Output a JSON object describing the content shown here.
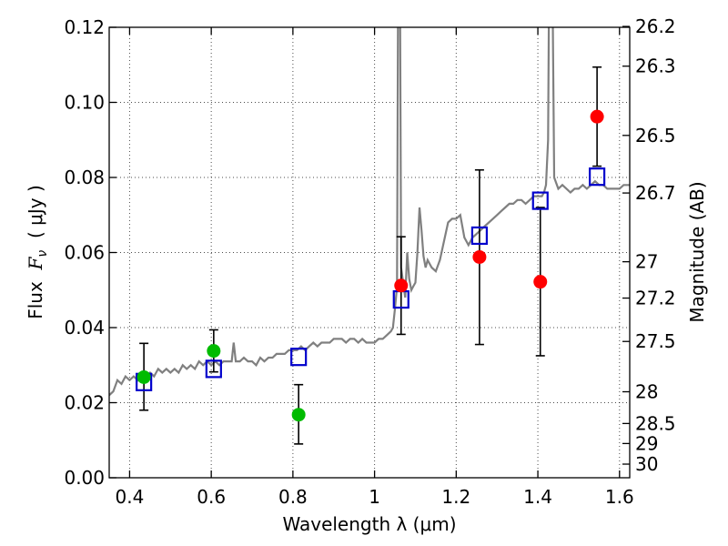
{
  "chart_data": {
    "type": "scatter",
    "xlabel": "Wavelength  λ (μm)",
    "ylabel_left_text": "Flux  ",
    "ylabel_left_symbol": "F",
    "ylabel_left_sub": "ν",
    "ylabel_left_unit": "  ( μJy )",
    "ylabel_right": "Magnitude (AB)",
    "xlim": [
      0.35,
      1.625
    ],
    "ylim": [
      0.0,
      0.12
    ],
    "grid": true,
    "x_ticks": [
      {
        "v": 0.4,
        "label": "0.4"
      },
      {
        "v": 0.6,
        "label": "0.6"
      },
      {
        "v": 0.8,
        "label": "0.8"
      },
      {
        "v": 1.0,
        "label": "1"
      },
      {
        "v": 1.2,
        "label": "1.2"
      },
      {
        "v": 1.4,
        "label": "1.4"
      },
      {
        "v": 1.6,
        "label": "1.6"
      }
    ],
    "y_ticks": [
      {
        "v": 0.0,
        "label": "0.00"
      },
      {
        "v": 0.02,
        "label": "0.02"
      },
      {
        "v": 0.04,
        "label": "0.04"
      },
      {
        "v": 0.06,
        "label": "0.06"
      },
      {
        "v": 0.08,
        "label": "0.08"
      },
      {
        "v": 0.1,
        "label": "0.10"
      },
      {
        "v": 0.12,
        "label": "0.12"
      }
    ],
    "mag_ticks": [
      {
        "mag": 26.2,
        "label": "26.2"
      },
      {
        "mag": 26.3,
        "label": "26.3"
      },
      {
        "mag": 26.5,
        "label": "26.5"
      },
      {
        "mag": 26.7,
        "label": "26.7"
      },
      {
        "mag": 27.0,
        "label": "27"
      },
      {
        "mag": 27.2,
        "label": "27.2"
      },
      {
        "mag": 27.5,
        "label": "27.5"
      },
      {
        "mag": 28.0,
        "label": "28"
      },
      {
        "mag": 28.5,
        "label": "28.5"
      },
      {
        "mag": 29.0,
        "label": "29"
      },
      {
        "mag": 30.0,
        "label": "30"
      }
    ],
    "spectrum": {
      "color": "#808080",
      "points": [
        [
          0.35,
          0.022
        ],
        [
          0.36,
          0.023
        ],
        [
          0.37,
          0.026
        ],
        [
          0.38,
          0.025
        ],
        [
          0.39,
          0.027
        ],
        [
          0.4,
          0.026
        ],
        [
          0.41,
          0.027
        ],
        [
          0.42,
          0.026
        ],
        [
          0.43,
          0.028
        ],
        [
          0.44,
          0.027
        ],
        [
          0.45,
          0.028
        ],
        [
          0.46,
          0.027
        ],
        [
          0.47,
          0.029
        ],
        [
          0.48,
          0.028
        ],
        [
          0.49,
          0.029
        ],
        [
          0.5,
          0.028
        ],
        [
          0.51,
          0.029
        ],
        [
          0.52,
          0.028
        ],
        [
          0.53,
          0.03
        ],
        [
          0.54,
          0.029
        ],
        [
          0.55,
          0.03
        ],
        [
          0.56,
          0.029
        ],
        [
          0.57,
          0.031
        ],
        [
          0.58,
          0.03
        ],
        [
          0.59,
          0.031
        ],
        [
          0.6,
          0.03
        ],
        [
          0.61,
          0.031
        ],
        [
          0.62,
          0.03
        ],
        [
          0.63,
          0.031
        ],
        [
          0.64,
          0.031
        ],
        [
          0.65,
          0.031
        ],
        [
          0.655,
          0.036
        ],
        [
          0.66,
          0.031
        ],
        [
          0.67,
          0.031
        ],
        [
          0.68,
          0.032
        ],
        [
          0.69,
          0.031
        ],
        [
          0.7,
          0.031
        ],
        [
          0.71,
          0.03
        ],
        [
          0.72,
          0.032
        ],
        [
          0.73,
          0.031
        ],
        [
          0.74,
          0.032
        ],
        [
          0.75,
          0.032
        ],
        [
          0.76,
          0.033
        ],
        [
          0.77,
          0.033
        ],
        [
          0.78,
          0.033
        ],
        [
          0.79,
          0.034
        ],
        [
          0.8,
          0.034
        ],
        [
          0.81,
          0.034
        ],
        [
          0.82,
          0.035
        ],
        [
          0.83,
          0.034
        ],
        [
          0.84,
          0.035
        ],
        [
          0.85,
          0.036
        ],
        [
          0.86,
          0.035
        ],
        [
          0.87,
          0.036
        ],
        [
          0.88,
          0.036
        ],
        [
          0.89,
          0.036
        ],
        [
          0.9,
          0.037
        ],
        [
          0.91,
          0.037
        ],
        [
          0.92,
          0.037
        ],
        [
          0.93,
          0.036
        ],
        [
          0.94,
          0.037
        ],
        [
          0.95,
          0.037
        ],
        [
          0.96,
          0.036
        ],
        [
          0.97,
          0.037
        ],
        [
          0.98,
          0.036
        ],
        [
          0.99,
          0.036
        ],
        [
          1.0,
          0.036
        ],
        [
          1.01,
          0.037
        ],
        [
          1.02,
          0.037
        ],
        [
          1.03,
          0.038
        ],
        [
          1.04,
          0.039
        ],
        [
          1.045,
          0.04
        ],
        [
          1.05,
          0.045
        ],
        [
          1.055,
          0.051
        ],
        [
          1.058,
          0.14
        ],
        [
          1.062,
          0.14
        ],
        [
          1.065,
          0.056
        ],
        [
          1.07,
          0.052
        ],
        [
          1.075,
          0.048
        ],
        [
          1.08,
          0.06
        ],
        [
          1.085,
          0.053
        ],
        [
          1.09,
          0.05
        ],
        [
          1.095,
          0.051
        ],
        [
          1.1,
          0.052
        ],
        [
          1.105,
          0.06
        ],
        [
          1.11,
          0.072
        ],
        [
          1.115,
          0.066
        ],
        [
          1.12,
          0.059
        ],
        [
          1.125,
          0.056
        ],
        [
          1.13,
          0.058
        ],
        [
          1.14,
          0.056
        ],
        [
          1.15,
          0.055
        ],
        [
          1.16,
          0.058
        ],
        [
          1.17,
          0.063
        ],
        [
          1.18,
          0.068
        ],
        [
          1.19,
          0.069
        ],
        [
          1.2,
          0.069
        ],
        [
          1.21,
          0.07
        ],
        [
          1.22,
          0.064
        ],
        [
          1.23,
          0.062
        ],
        [
          1.24,
          0.064
        ],
        [
          1.25,
          0.065
        ],
        [
          1.26,
          0.066
        ],
        [
          1.27,
          0.067
        ],
        [
          1.28,
          0.068
        ],
        [
          1.29,
          0.069
        ],
        [
          1.3,
          0.07
        ],
        [
          1.31,
          0.071
        ],
        [
          1.32,
          0.072
        ],
        [
          1.33,
          0.073
        ],
        [
          1.34,
          0.073
        ],
        [
          1.35,
          0.074
        ],
        [
          1.36,
          0.074
        ],
        [
          1.37,
          0.073
        ],
        [
          1.38,
          0.074
        ],
        [
          1.39,
          0.075
        ],
        [
          1.4,
          0.075
        ],
        [
          1.41,
          0.075
        ],
        [
          1.415,
          0.076
        ],
        [
          1.42,
          0.078
        ],
        [
          1.425,
          0.09
        ],
        [
          1.428,
          0.14
        ],
        [
          1.435,
          0.14
        ],
        [
          1.44,
          0.08
        ],
        [
          1.45,
          0.077
        ],
        [
          1.46,
          0.078
        ],
        [
          1.47,
          0.077
        ],
        [
          1.48,
          0.076
        ],
        [
          1.49,
          0.077
        ],
        [
          1.5,
          0.077
        ],
        [
          1.51,
          0.078
        ],
        [
          1.52,
          0.077
        ],
        [
          1.53,
          0.078
        ],
        [
          1.54,
          0.079
        ],
        [
          1.55,
          0.078
        ],
        [
          1.56,
          0.078
        ],
        [
          1.57,
          0.077
        ],
        [
          1.58,
          0.077
        ],
        [
          1.59,
          0.077
        ],
        [
          1.6,
          0.077
        ],
        [
          1.61,
          0.078
        ],
        [
          1.625,
          0.078
        ]
      ]
    },
    "green_points": {
      "color": "#00bb00",
      "points": [
        {
          "x": 0.435,
          "y": 0.0268,
          "lo": 0.018,
          "hi": 0.0358
        },
        {
          "x": 0.606,
          "y": 0.0338,
          "lo": 0.0282,
          "hi": 0.0394
        },
        {
          "x": 0.814,
          "y": 0.0168,
          "lo": 0.009,
          "hi": 0.0248
        }
      ]
    },
    "red_points": {
      "color": "#ff0000",
      "points": [
        {
          "x": 1.065,
          "y": 0.0512,
          "lo": 0.0382,
          "hi": 0.0642
        },
        {
          "x": 1.257,
          "y": 0.0588,
          "lo": 0.0355,
          "hi": 0.082
        },
        {
          "x": 1.406,
          "y": 0.0522,
          "lo": 0.0325,
          "hi": 0.072
        },
        {
          "x": 1.545,
          "y": 0.0962,
          "lo": 0.083,
          "hi": 0.1094
        }
      ]
    },
    "model_points": {
      "color": "#0000cc",
      "points": [
        {
          "x": 0.435,
          "y": 0.0255
        },
        {
          "x": 0.606,
          "y": 0.029
        },
        {
          "x": 0.814,
          "y": 0.0322
        },
        {
          "x": 1.065,
          "y": 0.0475
        },
        {
          "x": 1.257,
          "y": 0.0645
        },
        {
          "x": 1.406,
          "y": 0.0738
        },
        {
          "x": 1.545,
          "y": 0.0802
        }
      ]
    }
  }
}
